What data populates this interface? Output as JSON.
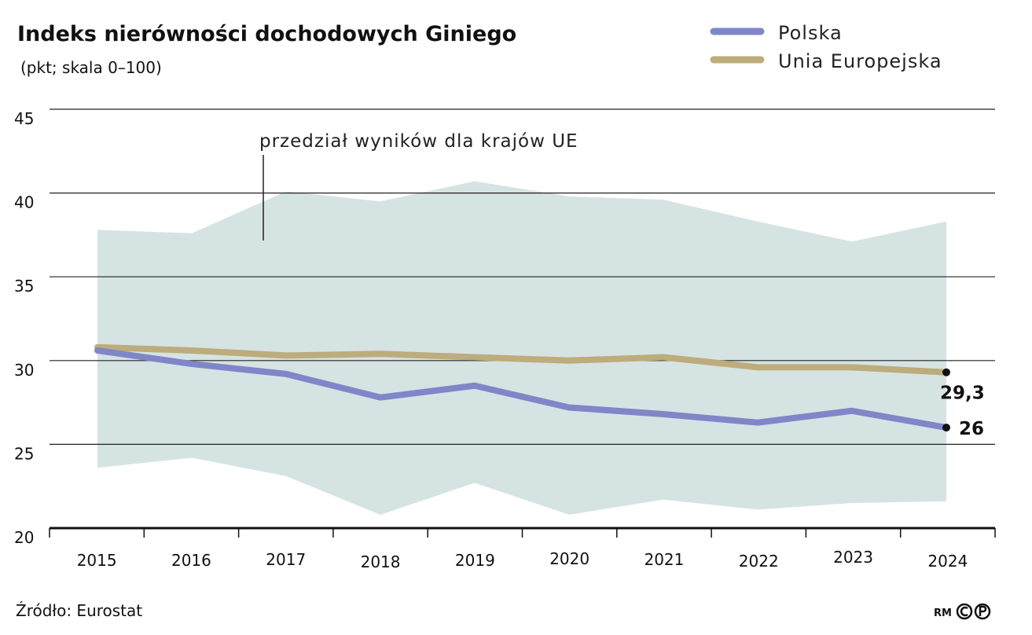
{
  "chart_data": {
    "type": "line",
    "title": "Indeks nierówności dochodowych Giniego",
    "subtitle": "(pkt; skala 0–100)",
    "x": [
      "2015",
      "2016",
      "2017",
      "2018",
      "2019",
      "2020",
      "2021",
      "2022",
      "2023",
      "2024"
    ],
    "ylim": [
      20,
      45
    ],
    "yticks": [
      20,
      25,
      30,
      35,
      40,
      45
    ],
    "grid": true,
    "legend_position": "top-right",
    "range_band": {
      "label": "przedział wyników dla krajów UE",
      "upper": [
        37.8,
        37.6,
        40.1,
        39.5,
        40.7,
        39.8,
        39.6,
        38.3,
        37.1,
        38.3
      ],
      "lower": [
        23.6,
        24.2,
        23.1,
        20.8,
        22.7,
        20.8,
        21.7,
        21.1,
        21.5,
        21.6
      ],
      "color": "#d6e3e3"
    },
    "series": [
      {
        "name": "Polska",
        "color": "#7f87c8",
        "values": [
          30.6,
          29.8,
          29.2,
          27.8,
          28.5,
          27.2,
          26.8,
          26.3,
          27.0,
          26.0
        ],
        "end_label": "26"
      },
      {
        "name": "Unia Europejska",
        "color": "#bdac7c",
        "values": [
          30.8,
          30.6,
          30.3,
          30.4,
          30.2,
          30.0,
          30.2,
          29.6,
          29.6,
          29.3
        ],
        "end_label": "29,3"
      }
    ]
  },
  "footer": {
    "source": "Źródło: Eurostat",
    "credit": "RM"
  }
}
